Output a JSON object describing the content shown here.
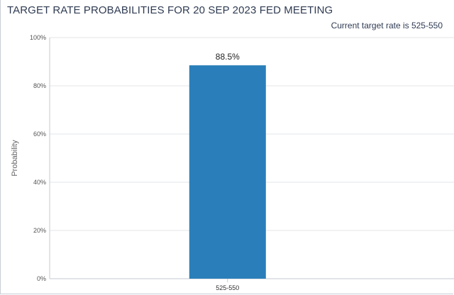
{
  "header": {
    "title": "TARGET RATE PROBABILITIES FOR 20 SEP 2023 FED MEETING",
    "subtitle": "Current target rate is 525-550"
  },
  "colors": {
    "bar": "#2a7fba",
    "grid": "#e3e6ea",
    "axis": "#c4c9d1",
    "title": "#2f3b52"
  },
  "chart_data": {
    "type": "bar",
    "title": "TARGET RATE PROBABILITIES FOR 20 SEP 2023 FED MEETING",
    "subtitle": "Current target rate is 525-550",
    "xlabel": "",
    "ylabel": "Probability",
    "categories": [
      "525-550"
    ],
    "values": [
      88.5
    ],
    "data_labels": [
      "88.5%"
    ],
    "ylim": [
      0,
      100
    ],
    "yticks": [
      "0%",
      "20%",
      "40%",
      "60%",
      "80%",
      "100%"
    ],
    "grid": true,
    "legend": "none"
  }
}
